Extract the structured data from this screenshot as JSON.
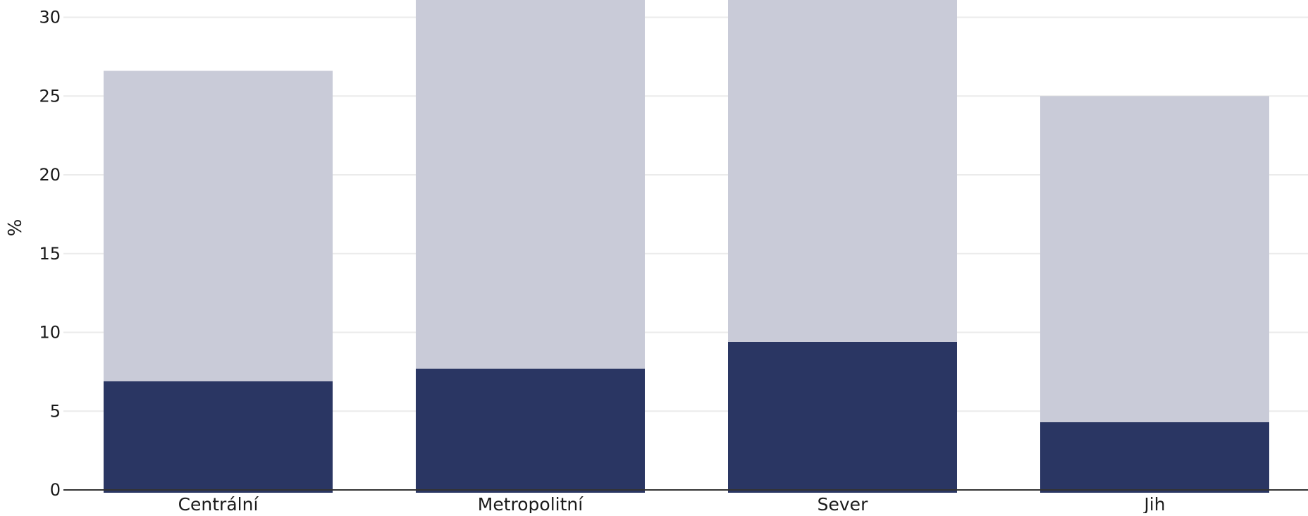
{
  "chart_data": {
    "type": "bar",
    "stacked": true,
    "categories": [
      "Centrální",
      "Metropolitní",
      "Sever",
      "Jih"
    ],
    "series": [
      {
        "values": [
          6.9,
          7.7,
          9.4,
          4.3
        ],
        "color": "#2a3663"
      },
      {
        "values": [
          19.7,
          23.5,
          21.8,
          20.7
        ],
        "color": "#c9cbd8"
      }
    ],
    "title": "",
    "xlabel": "",
    "ylabel": "%",
    "ylim": [
      0,
      31.1
    ],
    "yticks": [
      0,
      5,
      10,
      15,
      20,
      25,
      30
    ],
    "grid": true,
    "legend": "none"
  }
}
